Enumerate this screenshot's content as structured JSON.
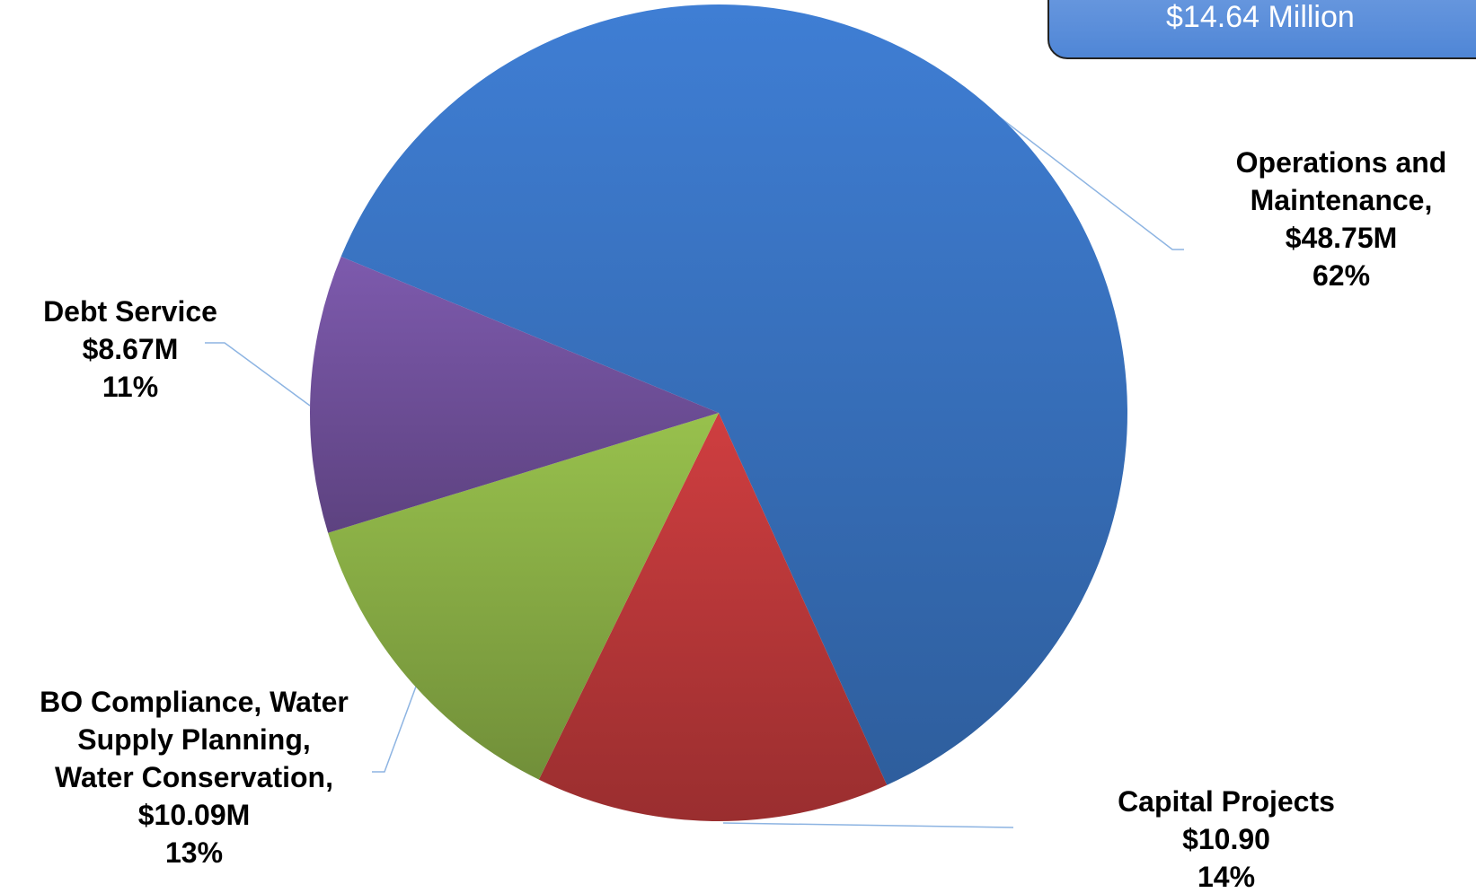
{
  "callout": {
    "text": "$14.64 Million"
  },
  "chart_data": {
    "type": "pie",
    "title": "",
    "start_angle_deg": -67.5,
    "direction": "clockwise",
    "slices": [
      {
        "name": "Operations and Maintenance",
        "label_lines": [
          "Operations and",
          "Maintenance,",
          "$48.75M",
          "62%"
        ],
        "percent": 62,
        "color": "#3a75c4"
      },
      {
        "name": "Capital Projects",
        "label_lines": [
          "Capital Projects",
          "$10.90",
          "14%"
        ],
        "percent": 14,
        "color": "#c0393b"
      },
      {
        "name": "BO Compliance, Water Supply Planning, Water Conservation",
        "label_lines": [
          "BO Compliance, Water",
          "Supply Planning,",
          "Water Conservation,",
          "$10.09M",
          "13%"
        ],
        "percent": 13,
        "color": "#8db347"
      },
      {
        "name": "Debt Service",
        "label_lines": [
          "Debt Service",
          "$8.67M",
          "11%"
        ],
        "percent": 11,
        "color": "#7453a0"
      }
    ]
  }
}
